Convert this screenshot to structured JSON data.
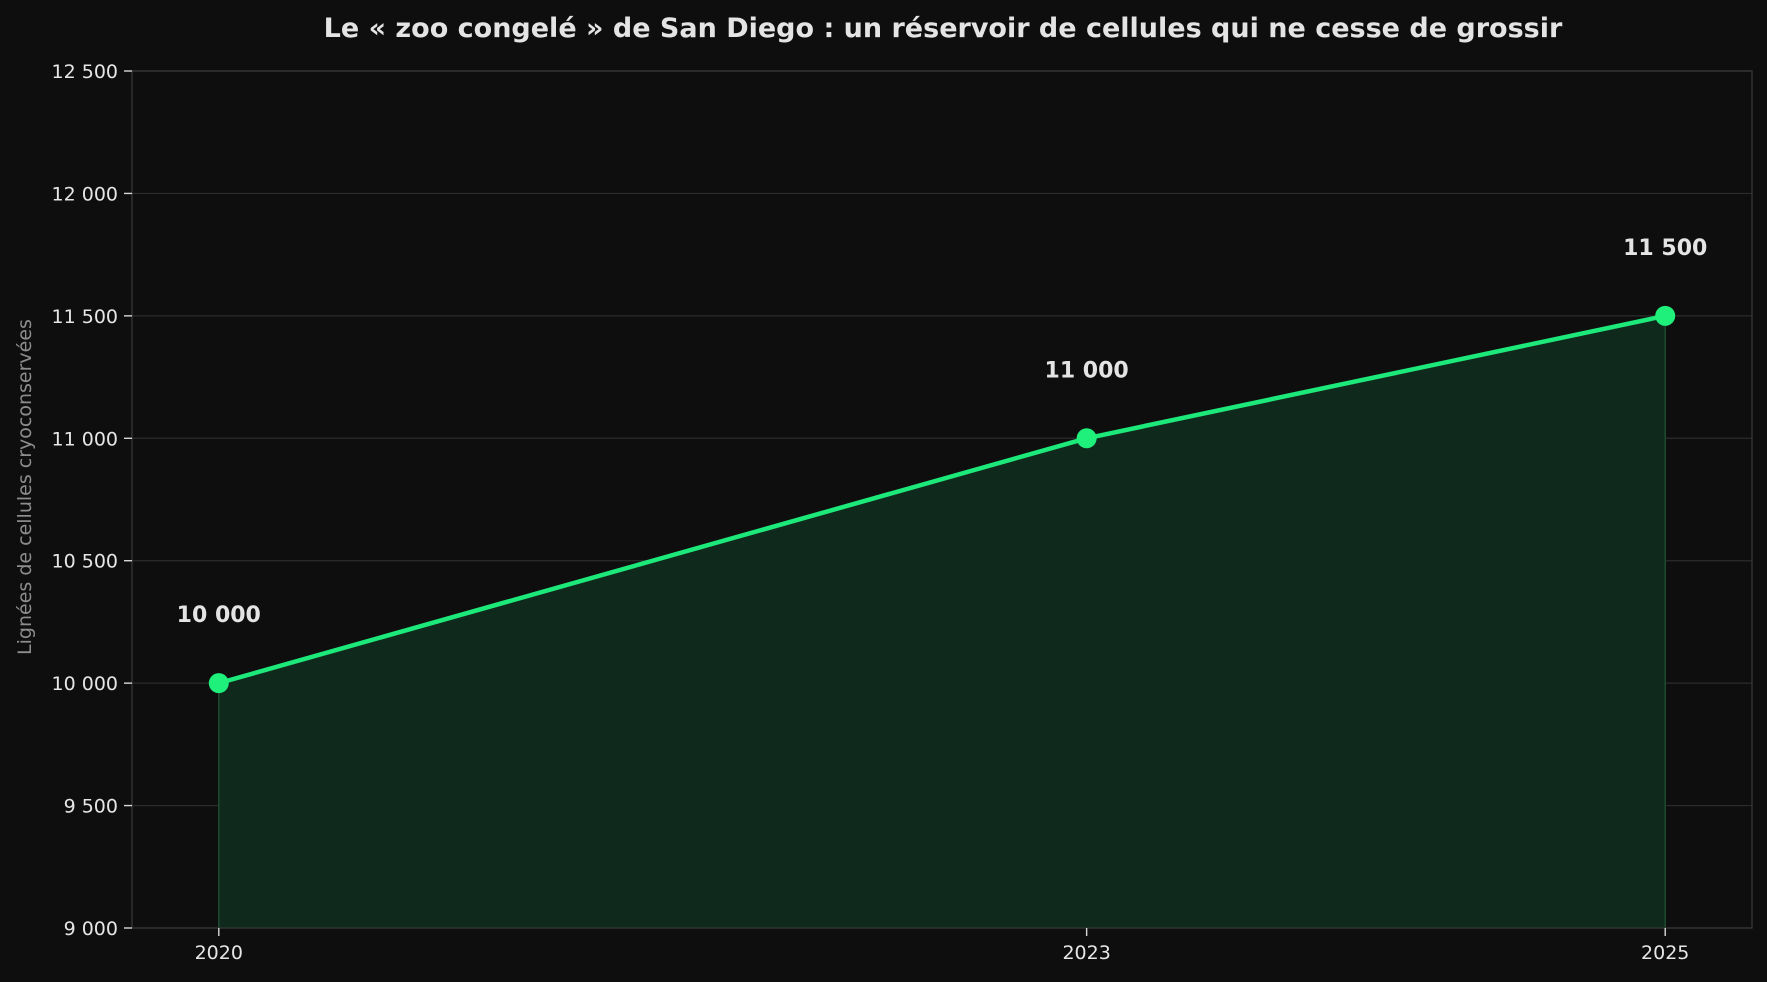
{
  "chart_data": {
    "type": "area",
    "title": "Le « zoo congelé » de San Diego : un réservoir de cellules qui ne cesse de grossir",
    "xlabel": "",
    "ylabel": "Lignées de cellules cryoconservées",
    "x": [
      2020,
      2023,
      2025
    ],
    "x_tick_labels": [
      "2020",
      "2023",
      "2025"
    ],
    "xlim": [
      2019.7,
      2025.3
    ],
    "ylim": [
      9000,
      12500
    ],
    "y_ticks": [
      9000,
      9500,
      10000,
      10500,
      11000,
      11500,
      12000,
      12500
    ],
    "y_tick_labels": [
      "9 000",
      "9 500",
      "10 000",
      "10 500",
      "11 000",
      "11 500",
      "12 000",
      "12 500"
    ],
    "series": [
      {
        "values": [
          10000,
          11000,
          11500
        ],
        "data_labels": [
          "10 000",
          "11 000",
          "11 500"
        ]
      }
    ],
    "grid": true,
    "legend": "none",
    "colors": {
      "background": "#0e0e0e",
      "line": "#1de87a",
      "marker": "#1ff07c",
      "area_fill": "#0f2a1c",
      "grid": "#2c2c2c",
      "text": "#e6e6e6",
      "ylabel_text": "#8d8d8d"
    }
  }
}
